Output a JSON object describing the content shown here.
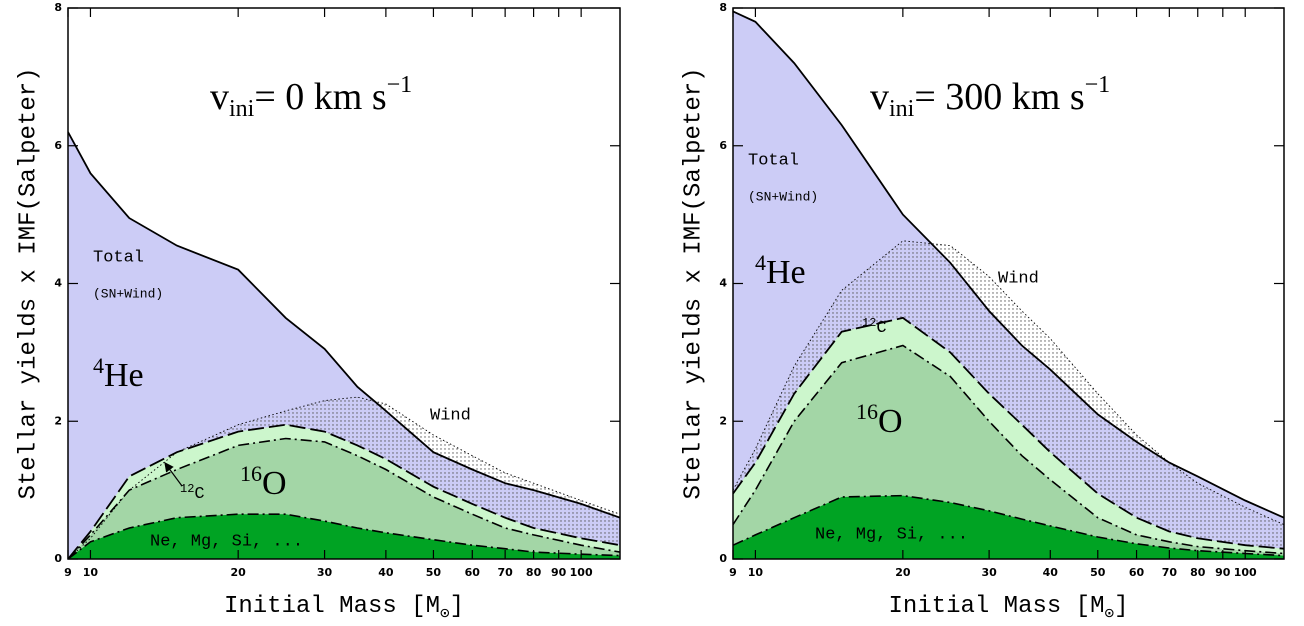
{
  "chart_data": [
    {
      "type": "area",
      "xscale": "log",
      "title": {
        "symbol": "v",
        "sub": "ini",
        "text": "=  0  km s",
        "sup": "−1"
      },
      "xlabel": {
        "main": "Initial Mass [M",
        "sub": "⊙",
        "end": "]"
      },
      "ylabel": "Stellar yields x IMF(Salpeter)",
      "x": [
        9,
        10,
        12,
        15,
        20,
        25,
        30,
        35,
        40,
        50,
        60,
        70,
        80,
        100,
        120
      ],
      "xlim": [
        9,
        120
      ],
      "xticks": [
        9,
        10,
        20,
        30,
        40,
        50,
        60,
        70,
        80,
        90,
        100
      ],
      "ylim": [
        0,
        8
      ],
      "yticks": [
        0,
        2,
        4,
        6,
        8
      ],
      "series": [
        {
          "fill": "#ccccf6",
          "line": "solid",
          "values": [
            6.2,
            5.6,
            4.95,
            4.55,
            4.2,
            3.5,
            3.05,
            2.5,
            2.15,
            1.55,
            1.3,
            1.1,
            1.0,
            0.8,
            0.6
          ]
        },
        {
          "fill": "dots",
          "line": "dotted",
          "values": [
            0.0,
            0.3,
            1.0,
            1.55,
            1.95,
            2.15,
            2.3,
            2.35,
            2.25,
            1.8,
            1.5,
            1.25,
            1.1,
            0.85,
            0.65
          ]
        },
        {
          "fill": "#ccf6cc",
          "line": "long-dash",
          "values": [
            0.0,
            0.4,
            1.2,
            1.55,
            1.85,
            1.95,
            1.85,
            1.65,
            1.45,
            1.05,
            0.8,
            0.6,
            0.45,
            0.3,
            0.2
          ]
        },
        {
          "fill": "#a3d6a6",
          "line": "dash-dot",
          "values": [
            0.0,
            0.35,
            1.0,
            1.3,
            1.65,
            1.75,
            1.7,
            1.5,
            1.3,
            0.9,
            0.65,
            0.45,
            0.35,
            0.2,
            0.1
          ]
        },
        {
          "fill": "#00a323",
          "line": "dash-dot",
          "values": [
            0.0,
            0.25,
            0.45,
            0.6,
            0.65,
            0.65,
            0.55,
            0.45,
            0.38,
            0.28,
            0.2,
            0.15,
            0.1,
            0.07,
            0.05
          ]
        }
      ],
      "annotations": {
        "total": "Total",
        "sn_wind": "(SN+Wind)",
        "he_mass": "4",
        "he_symbol": "He",
        "wind": "Wind",
        "c_mass": "12",
        "c_symbol": "C",
        "o_mass": "16",
        "o_symbol": "O",
        "metals": "Ne, Mg, Si, ..."
      }
    },
    {
      "type": "area",
      "xscale": "log",
      "title": {
        "symbol": "v",
        "sub": "ini",
        "text": "=  300  km s",
        "sup": "−1"
      },
      "xlabel": {
        "main": "Initial Mass [M",
        "sub": "⊙",
        "end": "]"
      },
      "ylabel": "Stellar yields x IMF(Salpeter)",
      "x": [
        9,
        10,
        12,
        15,
        20,
        25,
        30,
        35,
        40,
        50,
        60,
        70,
        80,
        100,
        120
      ],
      "xlim": [
        9,
        120
      ],
      "xticks": [
        9,
        10,
        20,
        30,
        40,
        50,
        60,
        70,
        80,
        90,
        100
      ],
      "ylim": [
        0,
        8
      ],
      "yticks": [
        0,
        2,
        4,
        6,
        8
      ],
      "series": [
        {
          "fill": "#ccccf6",
          "line": "solid",
          "values": [
            7.95,
            7.8,
            7.2,
            6.3,
            5.0,
            4.3,
            3.6,
            3.1,
            2.75,
            2.1,
            1.7,
            1.4,
            1.2,
            0.85,
            0.6
          ]
        },
        {
          "fill": "dots",
          "line": "dotted",
          "values": [
            1.0,
            1.6,
            2.8,
            3.9,
            4.62,
            4.55,
            4.1,
            3.6,
            3.2,
            2.4,
            1.8,
            1.4,
            1.1,
            0.75,
            0.5
          ]
        },
        {
          "fill": "#ccf6cc",
          "line": "long-dash",
          "values": [
            0.95,
            1.4,
            2.4,
            3.3,
            3.5,
            3.0,
            2.4,
            1.95,
            1.55,
            0.95,
            0.6,
            0.4,
            0.3,
            0.2,
            0.15
          ]
        },
        {
          "fill": "#a3d6a6",
          "line": "dash-dot",
          "values": [
            0.5,
            1.0,
            2.0,
            2.85,
            3.1,
            2.65,
            2.0,
            1.5,
            1.15,
            0.6,
            0.35,
            0.25,
            0.18,
            0.12,
            0.08
          ]
        },
        {
          "fill": "#00a323",
          "line": "dash-dot",
          "values": [
            0.2,
            0.35,
            0.6,
            0.9,
            0.92,
            0.82,
            0.7,
            0.58,
            0.48,
            0.32,
            0.22,
            0.16,
            0.12,
            0.08,
            0.05
          ]
        }
      ],
      "annotations": {
        "total": "Total",
        "sn_wind": "(SN+Wind)",
        "he_mass": "4",
        "he_symbol": "He",
        "wind": "Wind",
        "c_mass": "12",
        "c_symbol": "C",
        "o_mass": "16",
        "o_symbol": "O",
        "metals": "Ne, Mg, Si, ..."
      }
    }
  ]
}
